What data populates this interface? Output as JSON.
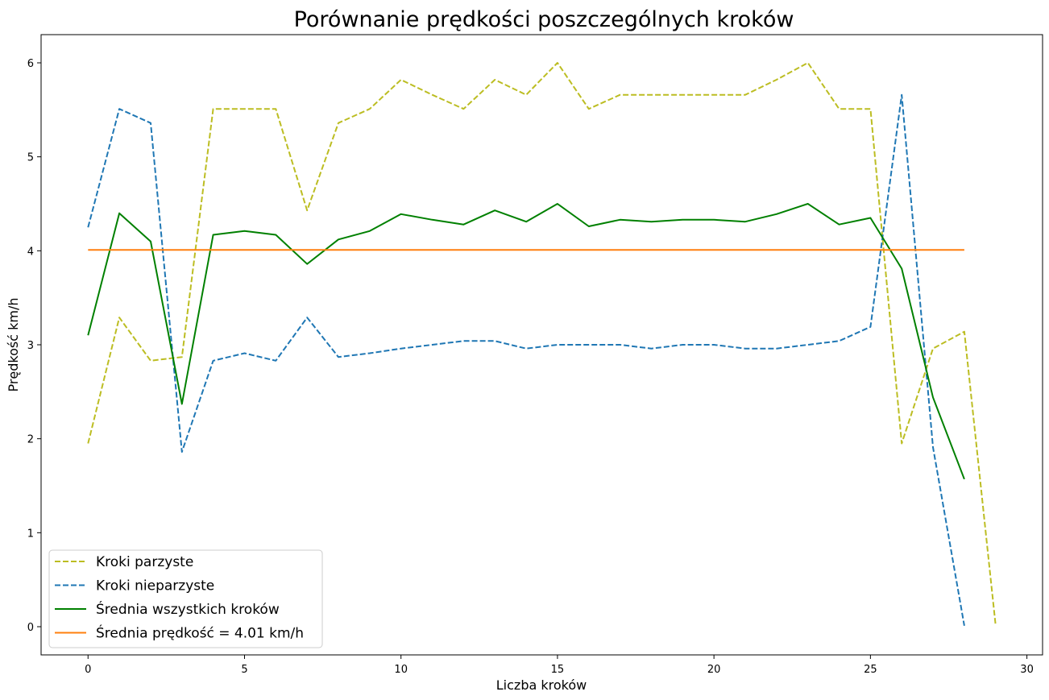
{
  "chart_data": {
    "type": "line",
    "title": "Porównanie prędkości poszczególnych kroków",
    "xlabel": "Liczba kroków",
    "ylabel": "Prędkość km/h",
    "xlim": [
      -1.5,
      30.5
    ],
    "ylim": [
      -0.3,
      6.3
    ],
    "xticks": [
      0,
      5,
      10,
      15,
      20,
      25,
      30
    ],
    "yticks": [
      0,
      1,
      2,
      3,
      4,
      5,
      6
    ],
    "grid": false,
    "legend_position": "lower-left",
    "series": [
      {
        "name": "Kroki parzyste",
        "color": "#bcbd22",
        "dash": "dashed",
        "x": [
          0,
          1,
          2,
          3,
          4,
          5,
          6,
          7,
          8,
          9,
          10,
          11,
          12,
          13,
          14,
          15,
          16,
          17,
          18,
          19,
          20,
          21,
          22,
          23,
          24,
          25,
          26,
          27,
          28,
          29
        ],
        "y": [
          1.95,
          3.29,
          2.83,
          2.87,
          5.51,
          5.51,
          5.51,
          4.43,
          5.36,
          5.51,
          5.82,
          5.66,
          5.51,
          5.82,
          5.66,
          6.0,
          5.51,
          5.66,
          5.66,
          5.66,
          5.66,
          5.66,
          5.82,
          6.0,
          5.51,
          5.51,
          1.95,
          2.96,
          3.14,
          0.02
        ]
      },
      {
        "name": "Kroki nieparzyste",
        "color": "#1f77b4",
        "dash": "dashed",
        "x": [
          0,
          1,
          2,
          3,
          4,
          5,
          6,
          7,
          8,
          9,
          10,
          11,
          12,
          13,
          14,
          15,
          16,
          17,
          18,
          19,
          20,
          21,
          22,
          23,
          24,
          25,
          26,
          27,
          28
        ],
        "y": [
          4.25,
          5.51,
          5.36,
          1.86,
          2.83,
          2.91,
          2.83,
          3.29,
          2.87,
          2.91,
          2.96,
          3.0,
          3.04,
          3.04,
          2.96,
          3.0,
          3.0,
          3.0,
          2.96,
          3.0,
          3.0,
          2.96,
          2.96,
          3.0,
          3.04,
          3.19,
          5.66,
          1.91,
          0.01
        ]
      },
      {
        "name": "Średnia wszystkich kroków",
        "color": "#008000",
        "dash": "solid",
        "x": [
          0,
          1,
          2,
          3,
          4,
          5,
          6,
          7,
          8,
          9,
          10,
          11,
          12,
          13,
          14,
          15,
          16,
          17,
          18,
          19,
          20,
          21,
          22,
          23,
          24,
          25,
          26,
          27,
          28
        ],
        "y": [
          3.1,
          4.4,
          4.1,
          2.37,
          4.17,
          4.21,
          4.17,
          3.86,
          4.12,
          4.21,
          4.39,
          4.33,
          4.28,
          4.43,
          4.31,
          4.5,
          4.26,
          4.33,
          4.31,
          4.33,
          4.33,
          4.31,
          4.39,
          4.5,
          4.28,
          4.35,
          3.81,
          2.44,
          1.57
        ]
      },
      {
        "name": "Średnia prędkość = 4.01 km/h",
        "color": "#ff7f0e",
        "dash": "solid",
        "x": [
          0,
          28
        ],
        "y": [
          4.01,
          4.01
        ]
      }
    ]
  }
}
